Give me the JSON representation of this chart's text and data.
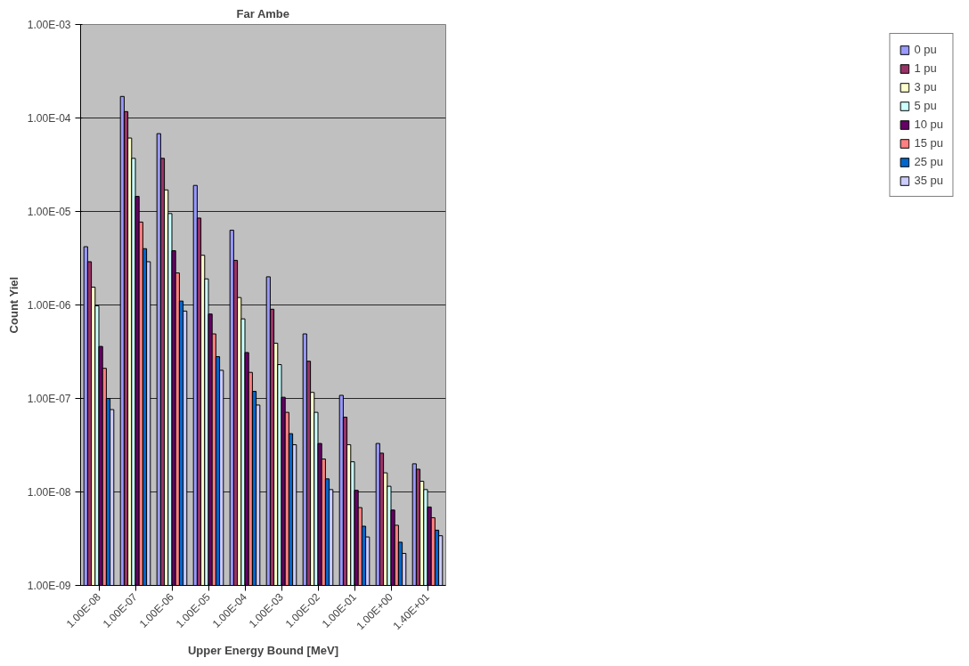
{
  "chart_data": {
    "type": "bar",
    "title": "Far Ambe",
    "xlabel": "Upper Energy Bound [MeV]",
    "ylabel": "Count Yiel",
    "categories": [
      "1.00E-08",
      "1.00E-07",
      "1.00E-06",
      "1.00E-05",
      "1.00E-04",
      "1.00E-03",
      "1.00E-02",
      "1.00E-01",
      "1.00E+00",
      "1.40E+01"
    ],
    "log": true,
    "grid": "y",
    "legend": "right",
    "ylim": [
      1e-09,
      0.001
    ],
    "yticks": [
      {
        "value": 1e-09,
        "label": "1.00E-09"
      },
      {
        "value": 1e-08,
        "label": "1.00E-08"
      },
      {
        "value": 1e-07,
        "label": "1.00E-07"
      },
      {
        "value": 1e-06,
        "label": "1.00E-06"
      },
      {
        "value": 1e-05,
        "label": "1.00E-05"
      },
      {
        "value": 0.0001,
        "label": "1.00E-04"
      },
      {
        "value": 0.001,
        "label": "1.00E-03"
      }
    ],
    "series": [
      {
        "name": "0 pu",
        "color": "#9999ff",
        "values": [
          4.2e-06,
          0.00017,
          6.8e-05,
          1.9e-05,
          6.3e-06,
          2e-06,
          4.9e-07,
          1.08e-07,
          3.3e-08,
          2e-08
        ]
      },
      {
        "name": "1 pu",
        "color": "#993366",
        "values": [
          2.9e-06,
          0.000117,
          3.7e-05,
          8.5e-06,
          3e-06,
          9e-07,
          2.5e-07,
          6.3e-08,
          2.6e-08,
          1.75e-08
        ]
      },
      {
        "name": "3 pu",
        "color": "#ffffcc",
        "values": [
          1.55e-06,
          6.1e-05,
          1.7e-05,
          3.4e-06,
          1.2e-06,
          3.9e-07,
          1.16e-07,
          3.2e-08,
          1.6e-08,
          1.3e-08
        ]
      },
      {
        "name": "5 pu",
        "color": "#ccffff",
        "values": [
          9.8e-07,
          3.7e-05,
          9.5e-06,
          1.9e-06,
          7.1e-07,
          2.3e-07,
          7.1e-08,
          2.1e-08,
          1.15e-08,
          1.06e-08
        ]
      },
      {
        "name": "10 pu",
        "color": "#660066",
        "values": [
          3.6e-07,
          1.45e-05,
          3.8e-06,
          8e-07,
          3.1e-07,
          1.03e-07,
          3.3e-08,
          1.04e-08,
          6.4e-09,
          6.9e-09
        ]
      },
      {
        "name": "15 pu",
        "color": "#ff8080",
        "values": [
          2.1e-07,
          7.7e-06,
          2.2e-06,
          4.9e-07,
          1.9e-07,
          7.1e-08,
          2.25e-08,
          6.8e-09,
          4.4e-09,
          5.3e-09
        ]
      },
      {
        "name": "25 pu",
        "color": "#0066cc",
        "values": [
          1e-07,
          4e-06,
          1.1e-06,
          2.8e-07,
          1.19e-07,
          4.2e-08,
          1.38e-08,
          4.3e-09,
          2.9e-09,
          3.9e-09
        ]
      },
      {
        "name": "35 pu",
        "color": "#ccccff",
        "values": [
          7.6e-08,
          2.9e-06,
          8.6e-07,
          2e-07,
          8.5e-08,
          3.2e-08,
          1.06e-08,
          3.3e-09,
          2.2e-09,
          3.4e-09
        ]
      }
    ]
  }
}
